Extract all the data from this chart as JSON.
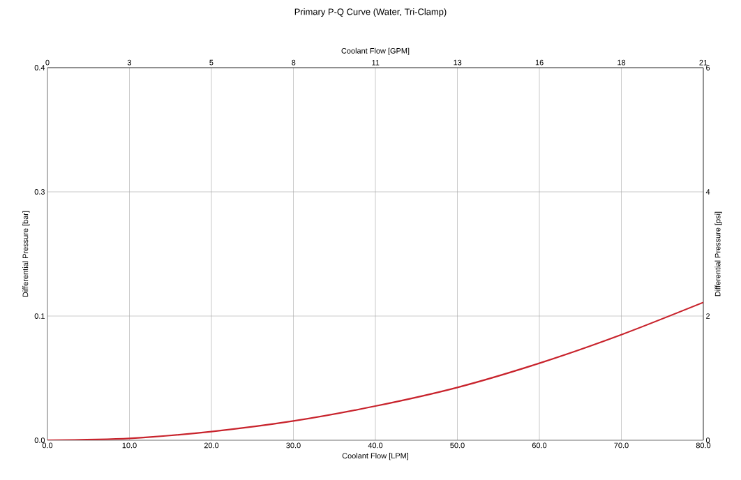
{
  "chart_data": {
    "type": "line",
    "title": "Primary P-Q Curve (Water, Tri-Clamp)",
    "xlabel": "Coolant Flow [LPM]",
    "x2label": "Coolant Flow [GPM]",
    "ylabel": "Differential Pressure [bar]",
    "y2label": "Differential Pressure [psi]",
    "xlim": [
      0,
      80
    ],
    "xticks": [
      {
        "value": 0,
        "label": "0.0"
      },
      {
        "value": 10,
        "label": "10.0"
      },
      {
        "value": 20,
        "label": "20.0"
      },
      {
        "value": 30,
        "label": "30.0"
      },
      {
        "value": 40,
        "label": "40.0"
      },
      {
        "value": 50,
        "label": "50.0"
      },
      {
        "value": 60,
        "label": "60.0"
      },
      {
        "value": 70,
        "label": "70.0"
      },
      {
        "value": 80,
        "label": "80.0"
      }
    ],
    "x2lim": [
      0,
      21.13
    ],
    "x2ticks": [
      0,
      {
        "value": 2.64,
        "label": "3"
      },
      {
        "value": 5.28,
        "label": "5"
      },
      {
        "value": 7.93,
        "label": "8"
      },
      {
        "value": 10.57,
        "label": "11"
      },
      {
        "value": 13.21,
        "label": "13"
      },
      {
        "value": 15.85,
        "label": "16"
      },
      {
        "value": 18.49,
        "label": "18"
      },
      {
        "value": 21.13,
        "label": "21"
      }
    ],
    "ylim": [
      0,
      0.4137
    ],
    "yticks": [
      {
        "value": 0,
        "label": "0.0"
      },
      {
        "value": 0.1379,
        "label": "0.1"
      },
      {
        "value": 0.2758,
        "label": "0.3"
      },
      {
        "value": 0.4137,
        "label": "0.4"
      }
    ],
    "y2lim": [
      0,
      6
    ],
    "y2ticks": [
      0,
      2,
      4,
      6
    ],
    "grid": true,
    "series": [
      {
        "x": [
          0,
          10,
          20,
          30,
          40,
          50,
          60,
          70,
          80
        ],
        "values": [
          0,
          0.03,
          0.14,
          0.31,
          0.55,
          0.85,
          1.24,
          1.7,
          2.22
        ],
        "axis": "y2",
        "color": "#c8232c"
      }
    ]
  }
}
